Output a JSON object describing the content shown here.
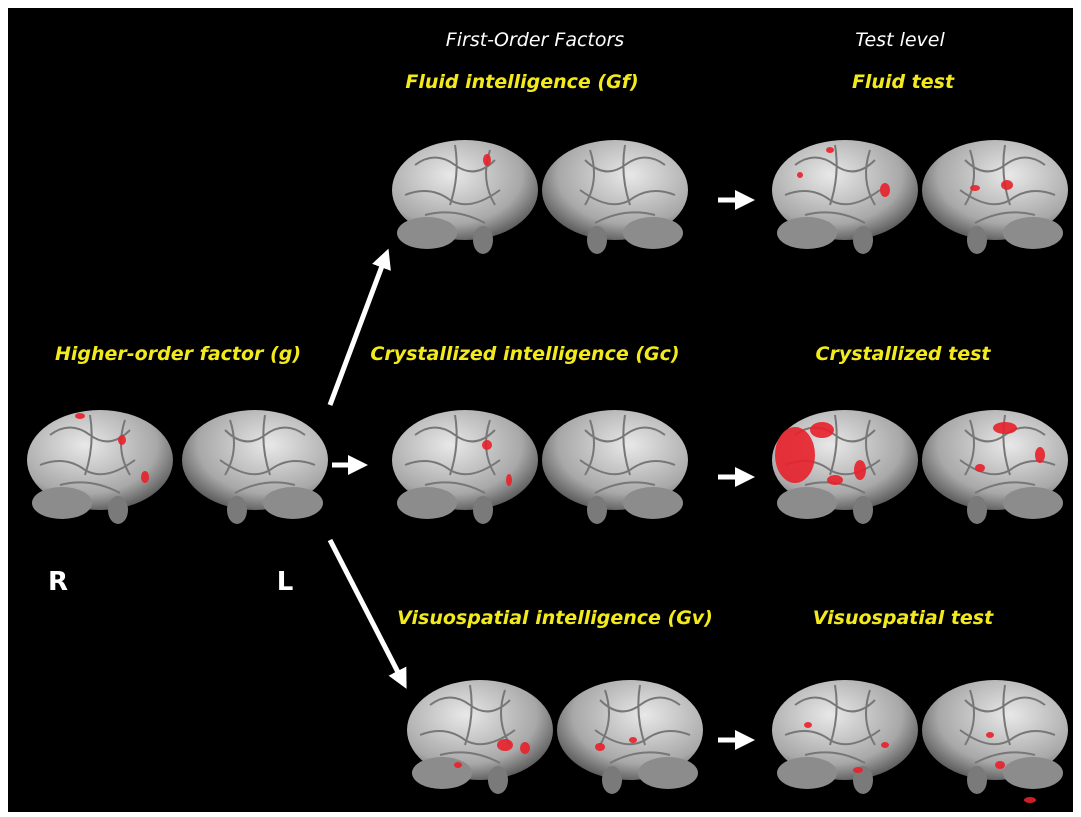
{
  "header": {
    "first_order": "First-Order Factors",
    "test_level": "Test level"
  },
  "higher_order": {
    "label": "Higher-order factor (g)",
    "right": "R",
    "left": "L"
  },
  "rows": [
    {
      "factor": "Fluid intelligence (Gf)",
      "test": "Fluid test"
    },
    {
      "factor": "Crystallized intelligence (Gc)",
      "test": "Crystallized test"
    },
    {
      "factor": "Visuospatial intelligence (Gv)",
      "test": "Visuospatial test"
    }
  ]
}
